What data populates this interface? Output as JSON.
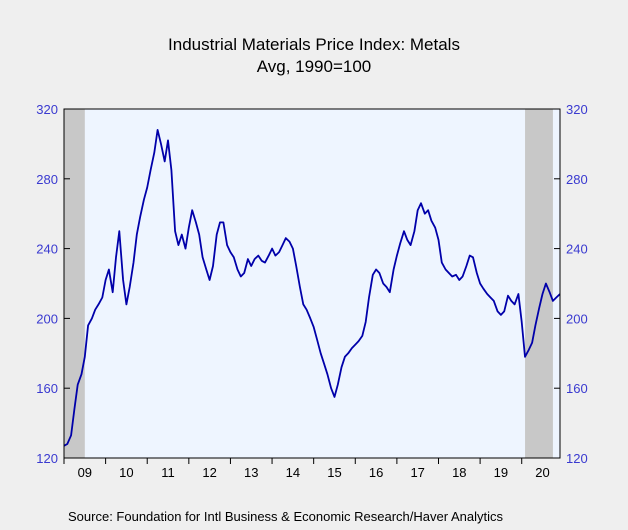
{
  "chart_data": {
    "type": "line",
    "title": "Industrial Materials Price Index: Metals",
    "subtitle": "Avg, 1990=100",
    "source": "Source:  Foundation for Intl Business & Economic Research/Haver Analytics",
    "y_ticks": [
      "120",
      "160",
      "200",
      "240",
      "280",
      "320"
    ],
    "ylim": [
      120,
      320
    ],
    "x_tick_labels": [
      "09",
      "10",
      "11",
      "12",
      "13",
      "14",
      "15",
      "16",
      "17",
      "18",
      "19",
      "20"
    ],
    "x_range": [
      2009.0,
      2020.92
    ],
    "recessions": [
      [
        2009.0,
        2009.5
      ],
      [
        2020.08,
        2020.75
      ]
    ],
    "grid": false,
    "colors": {
      "plot_background": "#eef5ff",
      "page_background": "#efefef",
      "line": "#0000aa",
      "recession_shading": "#c8c8c8",
      "tick_labels": "#3a3ad0"
    },
    "series": [
      {
        "x": [
          2009.0,
          2009.08,
          2009.17,
          2009.25,
          2009.33,
          2009.42,
          2009.5,
          2009.58,
          2009.67,
          2009.75,
          2009.83,
          2009.92,
          2010.0,
          2010.08,
          2010.17,
          2010.25,
          2010.33,
          2010.42,
          2010.5,
          2010.58,
          2010.67,
          2010.75,
          2010.83,
          2010.92,
          2011.0,
          2011.08,
          2011.17,
          2011.25,
          2011.33,
          2011.42,
          2011.5,
          2011.58,
          2011.67,
          2011.75,
          2011.83,
          2011.92,
          2012.0,
          2012.08,
          2012.17,
          2012.25,
          2012.33,
          2012.42,
          2012.5,
          2012.58,
          2012.67,
          2012.75,
          2012.83,
          2012.92,
          2013.0,
          2013.08,
          2013.17,
          2013.25,
          2013.33,
          2013.42,
          2013.5,
          2013.58,
          2013.67,
          2013.75,
          2013.83,
          2013.92,
          2014.0,
          2014.08,
          2014.17,
          2014.25,
          2014.33,
          2014.42,
          2014.5,
          2014.58,
          2014.67,
          2014.75,
          2014.83,
          2014.92,
          2015.0,
          2015.08,
          2015.17,
          2015.25,
          2015.33,
          2015.42,
          2015.5,
          2015.58,
          2015.67,
          2015.75,
          2015.83,
          2015.92,
          2016.0,
          2016.08,
          2016.17,
          2016.25,
          2016.33,
          2016.42,
          2016.5,
          2016.58,
          2016.67,
          2016.75,
          2016.83,
          2016.92,
          2017.0,
          2017.08,
          2017.17,
          2017.25,
          2017.33,
          2017.42,
          2017.5,
          2017.58,
          2017.67,
          2017.75,
          2017.83,
          2017.92,
          2018.0,
          2018.08,
          2018.17,
          2018.25,
          2018.33,
          2018.42,
          2018.5,
          2018.58,
          2018.67,
          2018.75,
          2018.83,
          2018.92,
          2019.0,
          2019.08,
          2019.17,
          2019.25,
          2019.33,
          2019.42,
          2019.5,
          2019.58,
          2019.67,
          2019.75,
          2019.83,
          2019.92,
          2020.0,
          2020.08,
          2020.17,
          2020.25,
          2020.33,
          2020.42,
          2020.5,
          2020.58,
          2020.67,
          2020.75,
          2020.83,
          2020.92
        ],
        "values": [
          127,
          128,
          133,
          148,
          162,
          168,
          178,
          196,
          200,
          205,
          208,
          212,
          222,
          228,
          215,
          235,
          250,
          222,
          208,
          218,
          232,
          248,
          258,
          268,
          275,
          285,
          295,
          308,
          300,
          290,
          302,
          285,
          250,
          242,
          248,
          240,
          252,
          262,
          255,
          248,
          235,
          228,
          222,
          230,
          248,
          255,
          255,
          242,
          238,
          235,
          228,
          224,
          226,
          234,
          230,
          234,
          236,
          233,
          232,
          236,
          240,
          236,
          238,
          242,
          246,
          244,
          240,
          230,
          218,
          208,
          205,
          200,
          195,
          188,
          180,
          174,
          168,
          160,
          155,
          162,
          172,
          178,
          180,
          183,
          185,
          187,
          190,
          198,
          212,
          225,
          228,
          226,
          220,
          218,
          215,
          228,
          236,
          243,
          250,
          245,
          242,
          250,
          262,
          266,
          260,
          262,
          256,
          252,
          245,
          232,
          228,
          226,
          224,
          225,
          222,
          224,
          230,
          236,
          235,
          226,
          220,
          217,
          214,
          212,
          210,
          204,
          202,
          204,
          213,
          210,
          208,
          214,
          198,
          178,
          182,
          186,
          196,
          206,
          214,
          220,
          215,
          210,
          212,
          214
        ]
      }
    ]
  }
}
